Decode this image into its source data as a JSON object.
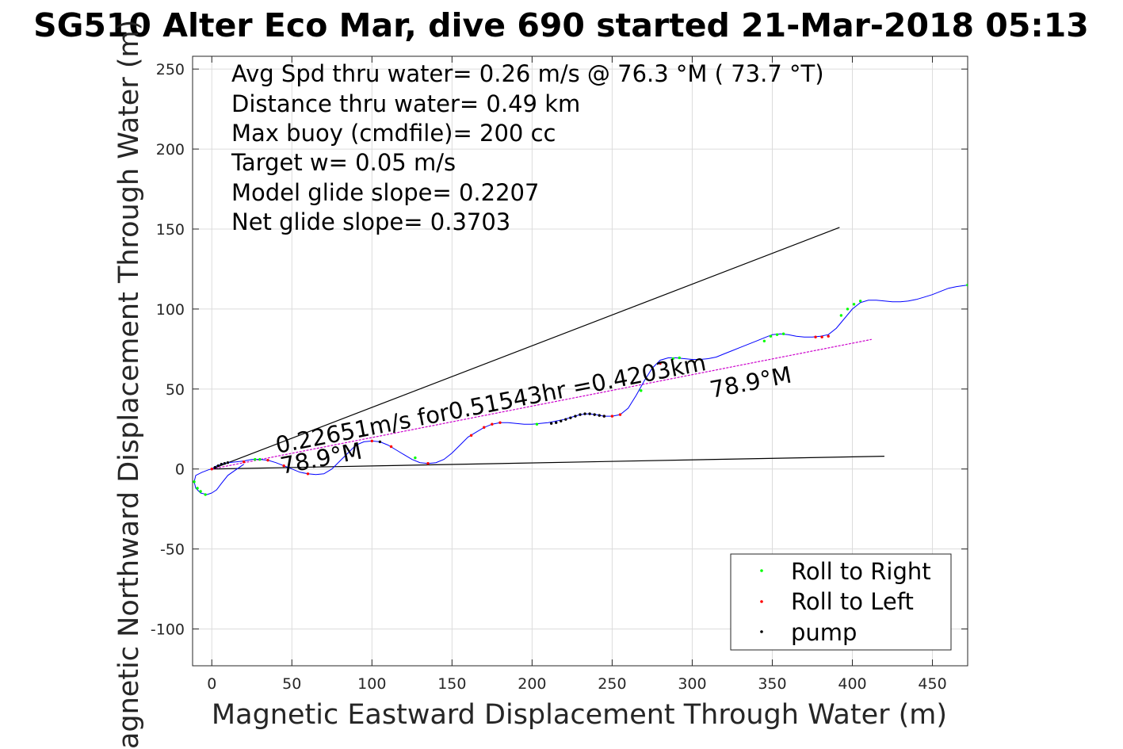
{
  "chart_data": {
    "type": "line",
    "title": "SG510 Alter Eco Mar, dive 690 started 21-Mar-2018 05:13",
    "xlabel": "Magnetic Eastward Displacement Through Water (m)",
    "ylabel": "Magnetic Northward Displacement Through Water (m)",
    "xlim": [
      -12,
      472
    ],
    "ylim": [
      -123,
      258
    ],
    "xticks": [
      0,
      50,
      100,
      150,
      200,
      250,
      300,
      350,
      400,
      450
    ],
    "yticks": [
      -100,
      -50,
      0,
      50,
      100,
      150,
      200,
      250
    ],
    "xtick_labels": [
      "0",
      "50",
      "100",
      "150",
      "200",
      "250",
      "300",
      "350",
      "400",
      "450"
    ],
    "ytick_labels": [
      "-100",
      "-50",
      "0",
      "50",
      "100",
      "150",
      "200",
      "250"
    ],
    "grid": true,
    "legend_position": "bottom-right",
    "text_box": [
      "Avg Spd thru water=  0.26 m/s @  76.3 °M ( 73.7 °T)",
      "Distance thru water=  0.49 km",
      "Max buoy (cmdfile)= 200 cc",
      "Target w= 0.05 m/s",
      "Model glide slope= 0.2207",
      "Net glide slope= 0.3703"
    ],
    "annotations": {
      "speed_label": "0.22651m/s for0.51543hr =0.4203km",
      "heading_label_start": "78.9°M",
      "heading_label_end": "78.9°M"
    },
    "reference_lines": [
      {
        "name": "upper glide cone",
        "color": "#000000",
        "x": [
          0,
          392
        ],
        "y": [
          0,
          151
        ]
      },
      {
        "name": "lower glide cone",
        "color": "#000000",
        "x": [
          0,
          420
        ],
        "y": [
          0,
          8
        ]
      },
      {
        "name": "net displacement",
        "color": "#cc00cc",
        "x": [
          0,
          412
        ],
        "y": [
          0,
          81
        ]
      }
    ],
    "track": {
      "color": "#0000ff",
      "x": [
        0,
        3,
        6,
        10,
        15,
        20,
        25,
        30,
        35,
        40,
        45,
        50,
        55,
        60,
        65,
        70,
        75,
        80,
        85,
        90,
        95,
        100,
        105,
        110,
        115,
        120,
        125,
        130,
        135,
        140,
        145,
        150,
        155,
        160,
        165,
        170,
        175,
        180,
        185,
        190,
        195,
        200,
        205,
        210,
        215,
        220,
        225,
        230,
        235,
        240,
        245,
        250,
        255,
        260,
        265,
        270,
        275,
        280,
        285,
        290,
        295,
        300,
        305,
        310,
        315,
        320,
        325,
        330,
        335,
        340,
        345,
        350,
        355,
        360,
        365,
        370,
        375,
        380,
        385,
        390,
        395,
        400,
        405,
        410,
        415,
        420,
        425,
        430,
        435,
        440,
        445,
        450,
        455,
        460,
        465,
        472
      ],
      "y": [
        0,
        2,
        3,
        4,
        4.5,
        5,
        6,
        6,
        5.5,
        4,
        2,
        0,
        -2,
        -3,
        -3.5,
        -3,
        0,
        5,
        10,
        15,
        17,
        17.5,
        17,
        15,
        12,
        9,
        6,
        4,
        3.5,
        4,
        6,
        10,
        15,
        20,
        23,
        26,
        28,
        29,
        29,
        28.5,
        28,
        28,
        28.5,
        29,
        30,
        31,
        32.5,
        34,
        34.5,
        34,
        33,
        33,
        34,
        38,
        46,
        55,
        63,
        68,
        69.5,
        69.5,
        69,
        68.5,
        68.5,
        69,
        70,
        72,
        74,
        76,
        78,
        80,
        82,
        84,
        84.5,
        84,
        83,
        82.5,
        82.5,
        83,
        84,
        88,
        94,
        100,
        104,
        105.5,
        105.5,
        105,
        104.5,
        104.5,
        105,
        106,
        107.5,
        109,
        111,
        113,
        114,
        115
      ]
    },
    "series": [
      {
        "name": "Roll to Right",
        "color": "#00ff00",
        "marker": "point",
        "x": [
          -11,
          -9,
          -7,
          -4,
          27,
          30,
          127,
          203,
          268,
          288,
          292,
          345,
          349,
          353,
          357,
          393,
          397,
          401,
          405,
          472
        ],
        "y": [
          -8,
          -12,
          -14,
          -16,
          6,
          6,
          7,
          28,
          49,
          69,
          69.5,
          80,
          83,
          84,
          84.5,
          96,
          100,
          103,
          105,
          115
        ]
      },
      {
        "name": "Roll to Left",
        "color": "#ff0000",
        "marker": "point",
        "x": [
          0,
          20,
          35,
          45,
          60,
          100,
          112,
          135,
          162,
          170,
          175,
          180,
          245,
          250,
          255,
          280,
          377,
          381,
          385
        ],
        "y": [
          0,
          4.5,
          5.5,
          2,
          -3,
          17.5,
          14,
          3.5,
          21,
          26,
          28,
          29,
          33,
          33,
          34,
          66,
          82.5,
          82.5,
          83
        ]
      },
      {
        "name": "pump",
        "color": "#000000",
        "marker": "point",
        "x": [
          2,
          4,
          6,
          8,
          10,
          90,
          105,
          212,
          215,
          218,
          221,
          224,
          227,
          230,
          233,
          236,
          239,
          242,
          245
        ],
        "y": [
          1,
          2,
          3,
          3.5,
          4,
          15,
          17,
          28.5,
          29,
          30,
          31,
          32,
          33,
          34,
          34.5,
          34.5,
          34,
          33.5,
          33
        ]
      }
    ]
  }
}
